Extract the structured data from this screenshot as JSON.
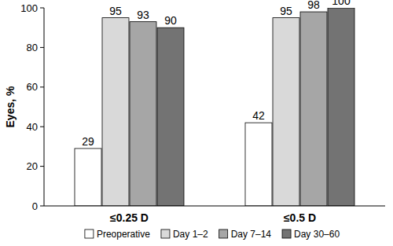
{
  "chart_data": {
    "type": "bar",
    "y_label": "Eyes, %",
    "categories": [
      "≤0.25 D",
      "≤0.5 D"
    ],
    "series": [
      {
        "name": "Preoperative",
        "color": "#ffffff",
        "values": [
          29,
          42
        ]
      },
      {
        "name": "Day 1–2",
        "color": "#d9d9d9",
        "values": [
          95,
          95
        ]
      },
      {
        "name": "Day 7–14",
        "color": "#a6a6a6",
        "values": [
          93,
          98
        ]
      },
      {
        "name": "Day 30–60",
        "color": "#737373",
        "values": [
          90,
          100
        ]
      }
    ],
    "ylim": [
      0,
      100
    ],
    "yticks": [
      0,
      20,
      40,
      60,
      80,
      100
    ],
    "grid": false,
    "data_labels": true,
    "legend": "bottom"
  }
}
